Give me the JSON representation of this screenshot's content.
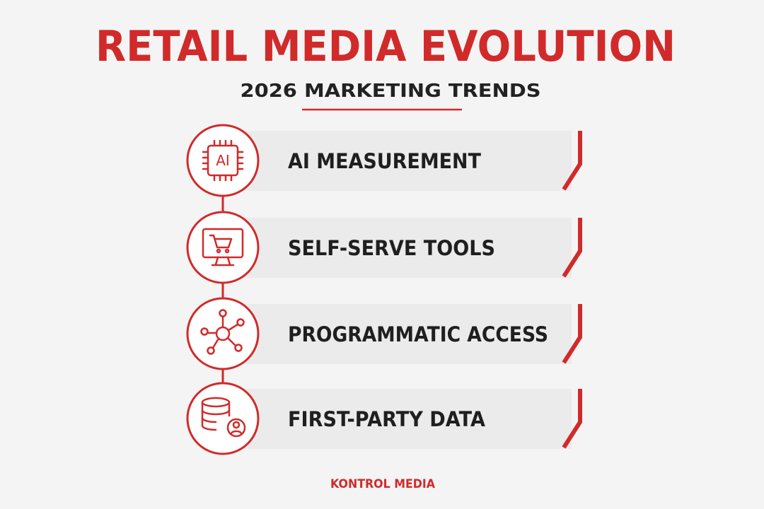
{
  "header": {
    "title": "RETAIL MEDIA EVOLUTION",
    "subtitle": "2026 MARKETING TRENDS"
  },
  "items": [
    {
      "label": "AI MEASUREMENT",
      "icon_text": "AI"
    },
    {
      "label": "SELF-SERVE TOOLS"
    },
    {
      "label": "PROGRAMMATIC ACCESS"
    },
    {
      "label": "FIRST-PARTY DATA"
    }
  ],
  "footer": "KONTROL MEDIA"
}
